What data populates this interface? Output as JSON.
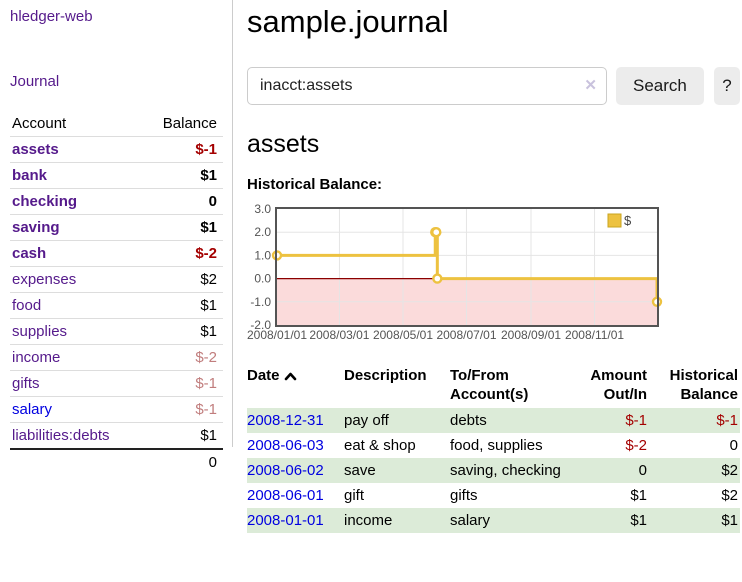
{
  "app": {
    "brand": "hledger-web",
    "nav_journal": "Journal"
  },
  "colors": {
    "link_purple": "#551a8b",
    "link_blue": "#0000e0",
    "negative_strong": "#a40000",
    "negative_soft": "#c17d7d",
    "row_green": "#dcebd8",
    "series_gold": "#edc240",
    "negative_region_pink": "#fbdbdb",
    "zero_line_red": "#8b0000",
    "chart_border_gray": "#545454"
  },
  "sidebar": {
    "header": {
      "account": "Account",
      "balance": "Balance"
    },
    "accounts": [
      {
        "name": "assets",
        "balance": "$-1",
        "depth": 1,
        "bold": true,
        "balance_tone": "neg-strong",
        "link": "purple"
      },
      {
        "name": "bank",
        "balance": "$1",
        "depth": 2,
        "bold": true,
        "balance_tone": "normal",
        "link": "purple"
      },
      {
        "name": "checking",
        "balance": "0",
        "depth": 3,
        "bold": true,
        "balance_tone": "normal",
        "link": "purple"
      },
      {
        "name": "saving",
        "balance": "$1",
        "depth": 3,
        "bold": true,
        "balance_tone": "normal",
        "link": "purple"
      },
      {
        "name": "cash",
        "balance": "$-2",
        "depth": 2,
        "bold": true,
        "balance_tone": "neg-strong",
        "link": "purple"
      },
      {
        "name": "expenses",
        "balance": "$2",
        "depth": 1,
        "bold": false,
        "balance_tone": "normal",
        "link": "purple"
      },
      {
        "name": "food",
        "balance": "$1",
        "depth": 2,
        "bold": false,
        "balance_tone": "normal",
        "link": "purple"
      },
      {
        "name": "supplies",
        "balance": "$1",
        "depth": 2,
        "bold": false,
        "balance_tone": "normal",
        "link": "purple"
      },
      {
        "name": "income",
        "balance": "$-2",
        "depth": 1,
        "bold": false,
        "balance_tone": "neg-soft",
        "link": "purple"
      },
      {
        "name": "gifts",
        "balance": "$-1",
        "depth": 2,
        "bold": false,
        "balance_tone": "neg-soft",
        "link": "purple"
      },
      {
        "name": "salary",
        "balance": "$-1",
        "depth": 2,
        "bold": false,
        "balance_tone": "neg-soft",
        "link": "blue"
      },
      {
        "name": "liabilities:debts",
        "balance": "$1",
        "depth": 1,
        "bold": false,
        "balance_tone": "normal",
        "link": "purple"
      }
    ],
    "total": "0"
  },
  "header": {
    "title": "sample.journal"
  },
  "search": {
    "value": "inacct:assets",
    "clear_icon": "✕",
    "button_label": "Search",
    "help_label": "?"
  },
  "account_page": {
    "heading": "assets",
    "chart_label": "Historical Balance:"
  },
  "chart_data": {
    "type": "line",
    "step_style": "step-after",
    "title": "Historical Balance",
    "series": [
      {
        "name": "$",
        "color": "#edc240",
        "points": [
          [
            "2008-01-01",
            1.0
          ],
          [
            "2008-06-01",
            2.0
          ],
          [
            "2008-06-02",
            2.0
          ],
          [
            "2008-06-03",
            0.0
          ],
          [
            "2008-12-31",
            -1.0
          ]
        ]
      }
    ],
    "xrange": [
      "2008-01-01",
      "2008-12-31"
    ],
    "ylim": [
      -2.0,
      3.0
    ],
    "yticks": [
      3.0,
      2.0,
      1.0,
      0.0,
      -1.0,
      -2.0
    ],
    "xtick_labels": [
      "2008/01/01",
      "2008/03/01",
      "2008/05/01",
      "2008/07/01",
      "2008/09/01",
      "2008/11/01"
    ],
    "xtick_dates": [
      "2008-01-01",
      "2008-03-01",
      "2008-05-01",
      "2008-07-01",
      "2008-09-01",
      "2008-11-01"
    ],
    "grid": true,
    "legend": {
      "label": "$",
      "position": "top-right"
    },
    "negative_region_fill": "#fbdbdb",
    "zero_line_color": "#8b0000"
  },
  "register": {
    "columns": [
      "Date",
      "Description",
      "To/From Account(s)",
      "Amount Out/In",
      "Historical Balance"
    ],
    "rows": [
      {
        "date": "2008-12-31",
        "description": "pay off",
        "accounts": "debts",
        "amount": "$-1",
        "amount_neg": true,
        "balance": "$-1",
        "balance_neg": true
      },
      {
        "date": "2008-06-03",
        "description": "eat & shop",
        "accounts": "food, supplies",
        "amount": "$-2",
        "amount_neg": true,
        "balance": "0",
        "balance_neg": false
      },
      {
        "date": "2008-06-02",
        "description": "save",
        "accounts": "saving, checking",
        "amount": "0",
        "amount_neg": false,
        "balance": "$2",
        "balance_neg": false
      },
      {
        "date": "2008-06-01",
        "description": "gift",
        "accounts": "gifts",
        "amount": "$1",
        "amount_neg": false,
        "balance": "$2",
        "balance_neg": false
      },
      {
        "date": "2008-01-01",
        "description": "income",
        "accounts": "salary",
        "amount": "$1",
        "amount_neg": false,
        "balance": "$1",
        "balance_neg": false
      }
    ]
  }
}
